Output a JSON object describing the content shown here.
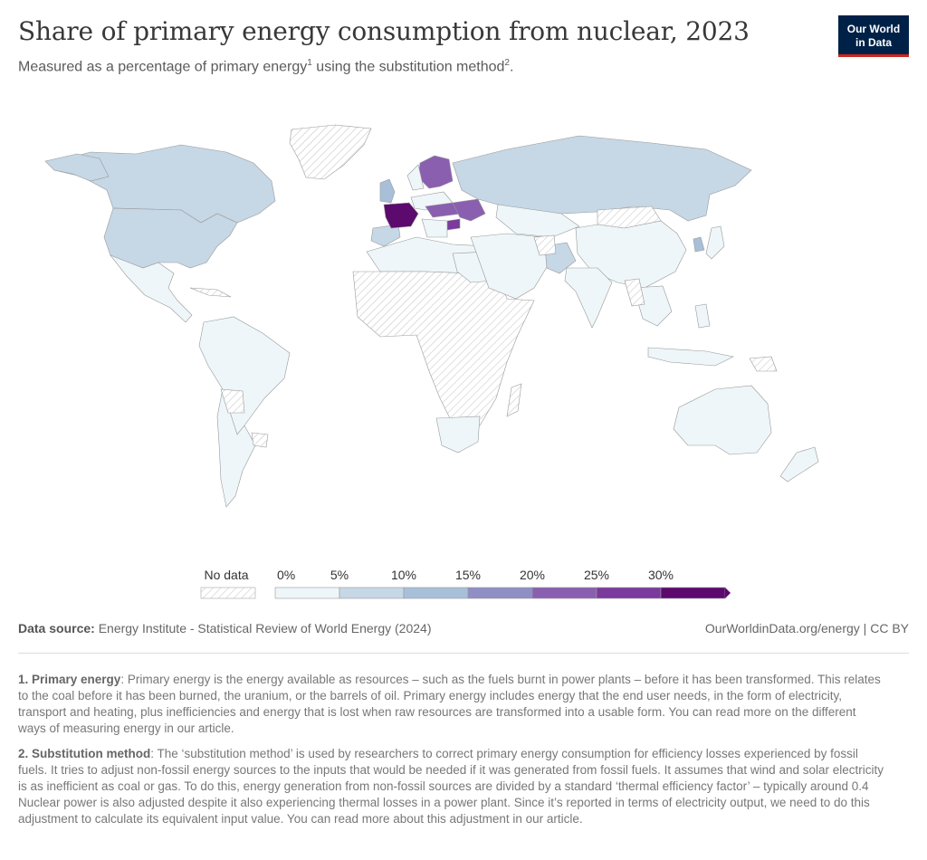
{
  "title": "Share of primary energy consumption from nuclear, 2023",
  "subtitle": {
    "part1": "Measured as a percentage of primary energy",
    "sup1": "1",
    "part2": " using the substitution method",
    "sup2": "2",
    "part3": "."
  },
  "logo": {
    "line1": "Our World",
    "line2": "in Data",
    "bg": "#002147",
    "accent": "#ce261e"
  },
  "legend": {
    "no_data_label": "No data",
    "ticks": [
      "0%",
      "5%",
      "10%",
      "15%",
      "20%",
      "25%",
      "30%"
    ],
    "colors": [
      "#eef6f9",
      "#c6d7e6",
      "#a8bfd9",
      "#8f8fc5",
      "#8a5fb0",
      "#7b3a9d",
      "#5c0a6e"
    ]
  },
  "source": {
    "label": "Data source:",
    "text": " Energy Institute - Statistical Review of World Energy (2024)",
    "right": "OurWorldinData.org/energy | CC BY"
  },
  "notes": [
    {
      "label": "1. Primary energy",
      "text": ": Primary energy is the energy available as resources – such as the fuels burnt in power plants – before it has been transformed. This relates to the coal before it has been burned, the uranium, or the barrels of oil. Primary energy includes energy that the end user needs, in the form of electricity, transport and heating, plus inefficiencies and energy that is lost when raw resources are transformed into a usable form. You can read more on the different ways of measuring energy in our article."
    },
    {
      "label": "2. Substitution method",
      "text": ": The ‘substitution method’ is used by researchers to correct primary energy consumption for efficiency losses experienced by fossil fuels. It tries to adjust non-fossil energy sources to the inputs that would be needed if it was generated from fossil fuels. It assumes that wind and solar electricity is as inefficient as coal or gas. To do this, energy generation from non-fossil sources are divided by a standard ‘thermal efficiency factor’ – typically around 0.4 Nuclear power is also adjusted despite it also experiencing thermal losses in a power plant. Since it’s reported in terms of electricity output, we need to do this adjustment to calculate its equivalent input value. You can read more about this adjustment in our article."
    }
  ]
}
